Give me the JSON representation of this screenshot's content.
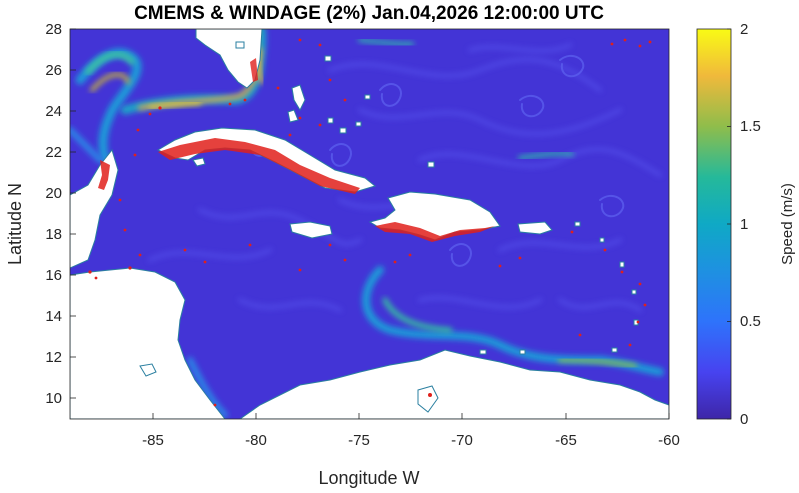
{
  "title": "CMEMS & WINDAGE (2%) Jan.04,2026 12:00:00 UTC",
  "map": {
    "xlabel": "Longitude W",
    "ylabel": "Latitude N",
    "xlim": [
      -89,
      -60
    ],
    "ylim": [
      9,
      28
    ],
    "xticks": [
      "-85",
      "-80",
      "-75",
      "-70",
      "-65",
      "-60"
    ],
    "yticks": [
      "10",
      "12",
      "14",
      "16",
      "18",
      "20",
      "22",
      "24",
      "26",
      "28"
    ],
    "grid": false,
    "field": "surface current speed",
    "colormap": "parula",
    "land_color": "#ffffff",
    "coastline_color": "#2a7fa0",
    "particle_color": "#e0201b",
    "background_color": "#4433d8"
  },
  "colorbar": {
    "label": "Speed (m/s)",
    "range": [
      0,
      2
    ],
    "ticks": [
      "0",
      "0.5",
      "1",
      "1.5",
      "2"
    ],
    "placement": "right"
  }
}
